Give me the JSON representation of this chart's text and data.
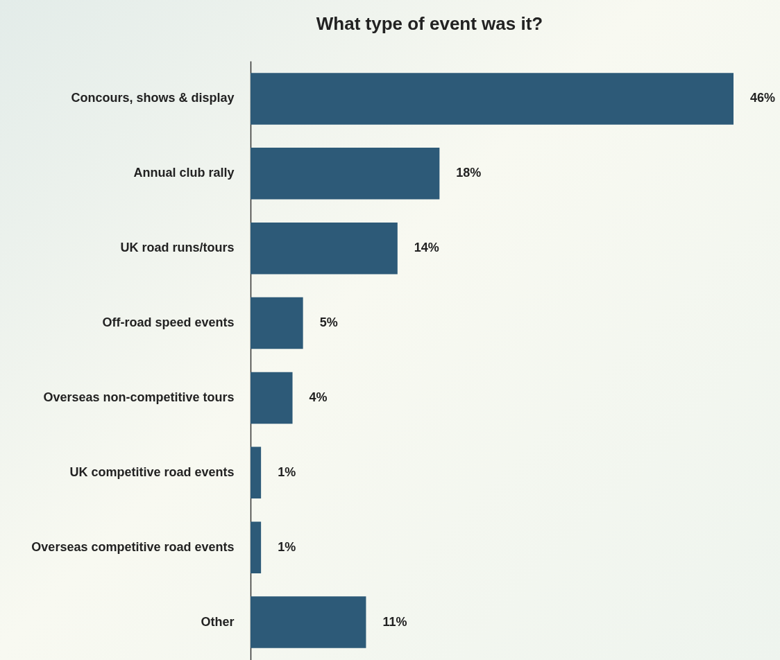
{
  "chart_data": {
    "type": "bar",
    "orientation": "horizontal",
    "title": "What type of event was it?",
    "categories": [
      "Concours, shows & display",
      "Annual club rally",
      "UK road runs/tours",
      "Off-road speed events",
      "Overseas non-competitive tours",
      "UK competitive road events",
      "Overseas competitive road events",
      "Other"
    ],
    "values": [
      46,
      18,
      14,
      5,
      4,
      1,
      1,
      11
    ],
    "value_labels": [
      "46%",
      "18%",
      "14%",
      "5%",
      "4%",
      "1%",
      "1%",
      "11%"
    ],
    "color": "#2d5a78"
  }
}
